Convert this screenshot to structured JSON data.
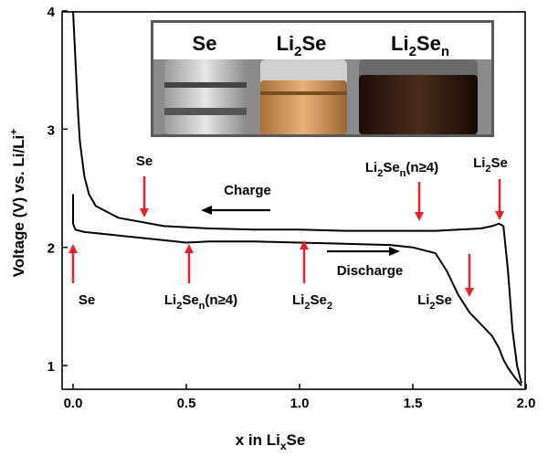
{
  "chart_data": {
    "type": "line",
    "xlabel": "x in Li",
    "xlabel_sub": "x",
    "xlabel_tail": "Se",
    "ylabel": "Voltage (V) vs. Li/Li",
    "ylabel_sup": "+",
    "xlim": [
      -0.05,
      2.0
    ],
    "ylim": [
      0.8,
      4.0
    ],
    "xticks": [
      0.0,
      0.5,
      1.0,
      1.5,
      2.0
    ],
    "xtick_labels": [
      "0.0",
      "0.5",
      "1.0",
      "1.5",
      "2.0"
    ],
    "yticks": [
      1,
      2,
      3,
      4
    ],
    "ytick_labels": [
      "1",
      "2",
      "3",
      "4"
    ],
    "grid": false,
    "series": [
      {
        "x": [
          0.0,
          0.0,
          0.01,
          0.05,
          0.1,
          0.2,
          0.3,
          0.4,
          0.5,
          0.6,
          0.8,
          1.0,
          1.2,
          1.4,
          1.5,
          1.6,
          1.65,
          1.7,
          1.75,
          1.8,
          1.85,
          1.88,
          1.9,
          1.92,
          1.95,
          1.98
        ],
        "y": [
          2.45,
          2.2,
          2.15,
          2.13,
          2.12,
          2.1,
          2.08,
          2.06,
          2.04,
          2.05,
          2.05,
          2.04,
          2.03,
          2.02,
          2.0,
          1.95,
          1.8,
          1.6,
          1.45,
          1.35,
          1.25,
          1.15,
          1.05,
          0.98,
          0.9,
          0.83
        ]
      },
      {
        "x": [
          0.0,
          0.01,
          0.02,
          0.03,
          0.05,
          0.07,
          0.1,
          0.2,
          0.4,
          0.6,
          0.8,
          1.0,
          1.2,
          1.4,
          1.6,
          1.8,
          1.85,
          1.88,
          1.9,
          1.92,
          1.94,
          1.96,
          1.98
        ],
        "y": [
          4.0,
          3.6,
          3.2,
          2.9,
          2.6,
          2.45,
          2.35,
          2.25,
          2.18,
          2.16,
          2.15,
          2.15,
          2.14,
          2.14,
          2.14,
          2.16,
          2.18,
          2.2,
          2.18,
          1.8,
          1.3,
          1.0,
          0.85
        ]
      }
    ],
    "annotations": [
      {
        "text": "Se",
        "x": 0.31,
        "y": 2.85
      },
      {
        "text": "Charge",
        "x": 0.6,
        "y": 2.5
      },
      {
        "text": "Li",
        "sub": "2",
        "text2": "Se",
        "sub2": "n",
        "text3": "(n≥4)",
        "x": 1.5,
        "y": 2.85
      },
      {
        "text": "Li",
        "sub": "2",
        "text2": "Se",
        "x": 1.85,
        "y": 2.85
      },
      {
        "text": "Se",
        "x": 0.0,
        "y": 1.72
      },
      {
        "text": "Li",
        "sub": "2",
        "text2": "Se",
        "sub2": "n",
        "text3": "(n≥4)",
        "x": 0.5,
        "y": 1.72
      },
      {
        "text": "Li",
        "sub": "2",
        "text2": "Se",
        "sub2": "2",
        "x": 1.02,
        "y": 1.72
      },
      {
        "text": "Discharge",
        "x": 1.15,
        "y": 1.9
      },
      {
        "text": "Li",
        "sub": "2",
        "text2": "Se",
        "x": 1.6,
        "y": 1.72
      }
    ],
    "inset_labels": [
      {
        "text": "Se"
      },
      {
        "text": "Li",
        "sub": "2",
        "text2": "Se"
      },
      {
        "text": "Li",
        "sub": "2",
        "text2": "Se",
        "sub2": "n"
      }
    ],
    "colors": {
      "curve": "#000000",
      "arrow": "#e8202a",
      "vial_clear": "#c8c8c8",
      "vial_amber": "#c98a45",
      "vial_dark": "#2a1810"
    }
  }
}
